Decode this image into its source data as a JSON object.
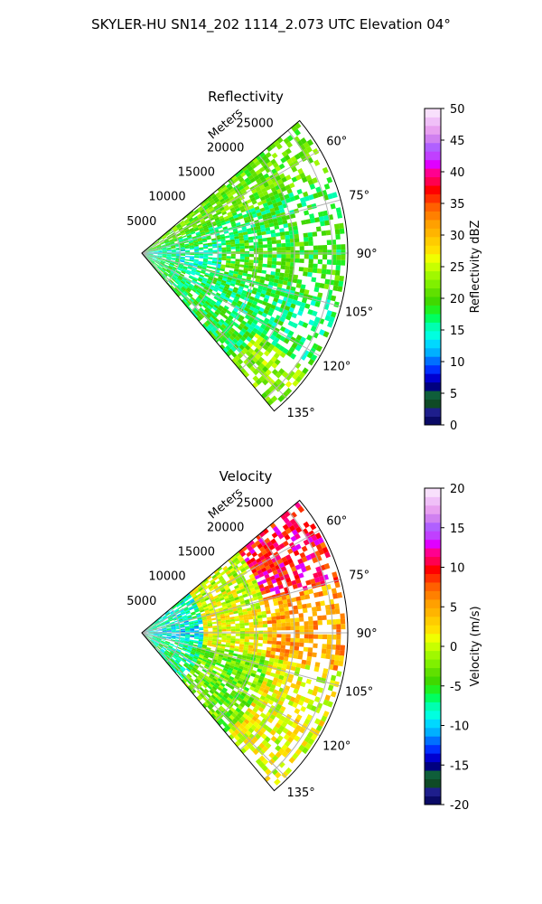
{
  "figure": {
    "suptitle": "SKYLER-HU  SN14_202  1114_2.073 UTC Elevation 04°"
  },
  "chart_data": [
    {
      "type": "heatmap",
      "subtype": "radar-ppi-sector",
      "title": "Reflectivity",
      "radial_label": "Meters",
      "radial_ticks": [
        5000,
        10000,
        15000,
        20000,
        25000
      ],
      "radial_tick_labels": [
        "5000",
        "10000",
        "15000",
        "20000",
        "25000"
      ],
      "rmax": 27000,
      "azimuth_range": [
        50,
        140
      ],
      "azimuth_ticks": [
        60,
        75,
        90,
        105,
        120,
        135
      ],
      "azimuth_tick_labels": [
        "60°",
        "75°",
        "90°",
        "105°",
        "120°",
        "135°"
      ],
      "grid": true,
      "colorbar": {
        "label": "Reflectivity dBZ",
        "vmin": 0,
        "vmax": 50,
        "ticks": [
          0,
          5,
          10,
          15,
          20,
          25,
          30,
          35,
          40,
          45,
          50
        ],
        "tick_labels": [
          "0",
          "5",
          "10",
          "15",
          "20",
          "25",
          "30",
          "35",
          "40",
          "45",
          "50"
        ],
        "colors": [
          "#0a0a66",
          "#1e1e8c",
          "#0f4a26",
          "#0f5e3a",
          "#000080",
          "#0000d0",
          "#0030ff",
          "#0070ff",
          "#00b0ff",
          "#00d8ff",
          "#00ffe0",
          "#00ffb0",
          "#00ff60",
          "#20f020",
          "#40d800",
          "#60e000",
          "#80f000",
          "#a0f800",
          "#c8ff00",
          "#f0ff00",
          "#ffe000",
          "#ffcc00",
          "#ffb400",
          "#ffa000",
          "#ff8000",
          "#ff6000",
          "#ff3000",
          "#ff0000",
          "#ff0050",
          "#ff0090",
          "#e000ff",
          "#c040ff",
          "#b060ff",
          "#d080f0",
          "#e8a0f0",
          "#f0c0f8",
          "#f8e0fc"
        ]
      },
      "regions": [
        {
          "az": [
            50,
            68
          ],
          "r": [
            0,
            27000
          ],
          "value": 21
        },
        {
          "az": [
            68,
            82
          ],
          "r": [
            0,
            27000
          ],
          "value": 18
        },
        {
          "az": [
            82,
            103
          ],
          "r": [
            0,
            10000
          ],
          "value": 15
        },
        {
          "az": [
            82,
            103
          ],
          "r": [
            10000,
            27000
          ],
          "value": 19
        },
        {
          "az": [
            103,
            125
          ],
          "r": [
            0,
            27000
          ],
          "value": 17
        },
        {
          "az": [
            125,
            140
          ],
          "r": [
            0,
            18000
          ],
          "value": 18
        },
        {
          "az": [
            125,
            140
          ],
          "r": [
            18000,
            27000
          ],
          "value": 23
        }
      ]
    },
    {
      "type": "heatmap",
      "subtype": "radar-ppi-sector",
      "title": "Velocity",
      "radial_label": "Meters",
      "radial_ticks": [
        5000,
        10000,
        15000,
        20000,
        25000
      ],
      "radial_tick_labels": [
        "5000",
        "10000",
        "15000",
        "20000",
        "25000"
      ],
      "rmax": 27000,
      "azimuth_range": [
        50,
        140
      ],
      "azimuth_ticks": [
        60,
        75,
        90,
        105,
        120,
        135
      ],
      "azimuth_tick_labels": [
        "60°",
        "75°",
        "90°",
        "105°",
        "120°",
        "135°"
      ],
      "grid": true,
      "colorbar": {
        "label": "Velocity (m/s)",
        "vmin": -20,
        "vmax": 20,
        "ticks": [
          -20,
          -15,
          -10,
          -5,
          0,
          5,
          10,
          15,
          20
        ],
        "tick_labels": [
          "-20",
          "-15",
          "-10",
          "-5",
          "0",
          "5",
          "10",
          "15",
          "20"
        ],
        "colors": [
          "#0a0a66",
          "#1e1e8c",
          "#0f4a26",
          "#0f5e3a",
          "#000080",
          "#0000d0",
          "#0030ff",
          "#0070ff",
          "#00b0ff",
          "#00d8ff",
          "#00ffe0",
          "#00ffb0",
          "#00ff60",
          "#20f020",
          "#40d800",
          "#60e000",
          "#80f000",
          "#a0f800",
          "#c8ff00",
          "#f0ff00",
          "#ffe000",
          "#ffcc00",
          "#ffb400",
          "#ffa000",
          "#ff8000",
          "#ff6000",
          "#ff3000",
          "#ff0000",
          "#ff0050",
          "#ff0090",
          "#e000ff",
          "#c040ff",
          "#b060ff",
          "#d080f0",
          "#e8a0f0",
          "#f0c0f8",
          "#f8e0fc"
        ]
      },
      "regions": [
        {
          "az": [
            50,
            75
          ],
          "r": [
            0,
            8000
          ],
          "value": -8
        },
        {
          "az": [
            50,
            75
          ],
          "r": [
            8000,
            16000
          ],
          "value": 0
        },
        {
          "az": [
            50,
            75
          ],
          "r": [
            16000,
            27000
          ],
          "value": 10
        },
        {
          "az": [
            75,
            100
          ],
          "r": [
            0,
            8000
          ],
          "value": -9
        },
        {
          "az": [
            75,
            100
          ],
          "r": [
            8000,
            16000
          ],
          "value": 1
        },
        {
          "az": [
            75,
            100
          ],
          "r": [
            16000,
            27000
          ],
          "value": 5
        },
        {
          "az": [
            100,
            140
          ],
          "r": [
            0,
            8000
          ],
          "value": -7
        },
        {
          "az": [
            100,
            140
          ],
          "r": [
            8000,
            17000
          ],
          "value": -3
        },
        {
          "az": [
            100,
            140
          ],
          "r": [
            17000,
            27000
          ],
          "value": 1
        }
      ]
    }
  ]
}
